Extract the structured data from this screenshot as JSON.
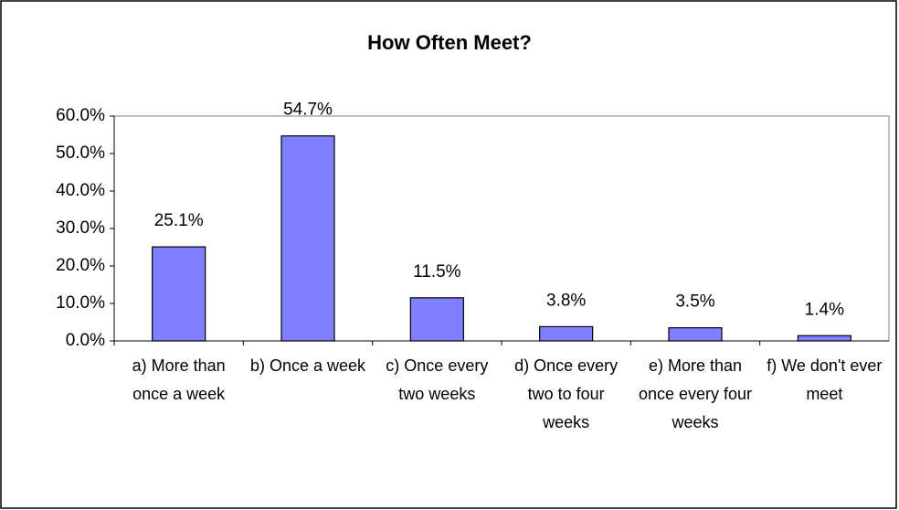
{
  "chart_data": {
    "type": "bar",
    "title": "How Often Meet?",
    "categories": [
      "a) More than once a week",
      "b) Once a week",
      "c) Once every two weeks",
      "d) Once every two to four weeks",
      "e) More than once every four weeks",
      "f) We don't ever meet"
    ],
    "values": [
      25.1,
      54.7,
      11.5,
      3.8,
      3.5,
      1.4
    ],
    "value_labels": [
      "25.1%",
      "54.7%",
      "11.5%",
      "3.8%",
      "3.5%",
      "1.4%"
    ],
    "color": "#8080ff",
    "ylim": [
      0,
      60
    ],
    "yticks": [
      {
        "value": 0,
        "label": "0.0%"
      },
      {
        "value": 10,
        "label": "10.0%"
      },
      {
        "value": 20,
        "label": "20.0%"
      },
      {
        "value": 30,
        "label": "30.0%"
      },
      {
        "value": 40,
        "label": "40.0%"
      },
      {
        "value": 50,
        "label": "50.0%"
      },
      {
        "value": 60,
        "label": "60.0%"
      }
    ],
    "grid": false
  }
}
